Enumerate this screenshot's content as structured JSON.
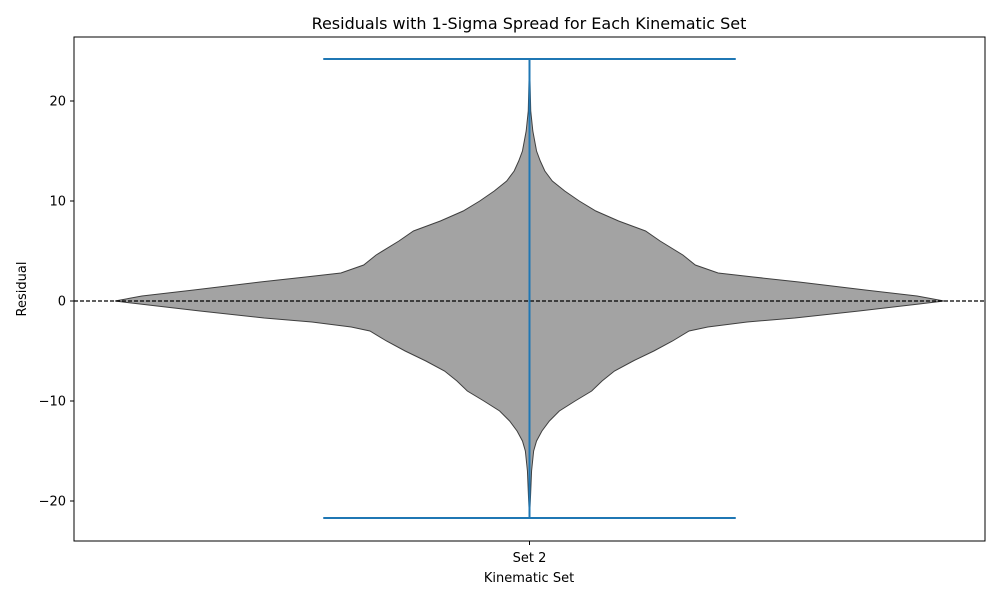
{
  "chart_data": {
    "type": "violin",
    "title": "Residuals with 1-Sigma Spread for Each Kinematic Set",
    "xlabel": "Kinematic Set",
    "ylabel": "Residual",
    "categories": [
      "Set 2"
    ],
    "ylim": [
      -24,
      26.4
    ],
    "yticks": [
      -20,
      -10,
      0,
      10,
      20
    ],
    "ytick_labels": [
      "−20",
      "−10",
      "0",
      "10",
      "20"
    ],
    "reference_line": {
      "y": 0,
      "style": "dashed",
      "color": "#000000"
    },
    "violins": [
      {
        "category": "Set 2",
        "min": -21.7,
        "max": 24.2,
        "fill_color": "#a3a3a3",
        "edge_color": "#3f3f3f",
        "whisker_color": "#1f77b4",
        "density_profile": [
          {
            "y": -21.7,
            "w": 0.0
          },
          {
            "y": -20.0,
            "w": 0.002
          },
          {
            "y": -17.0,
            "w": 0.005
          },
          {
            "y": -15.0,
            "w": 0.01
          },
          {
            "y": -14.0,
            "w": 0.017
          },
          {
            "y": -13.0,
            "w": 0.03
          },
          {
            "y": -12.0,
            "w": 0.048
          },
          {
            "y": -11.0,
            "w": 0.072
          },
          {
            "y": -10.0,
            "w": 0.11
          },
          {
            "y": -9.0,
            "w": 0.15
          },
          {
            "y": -8.0,
            "w": 0.175
          },
          {
            "y": -7.0,
            "w": 0.205
          },
          {
            "y": -6.0,
            "w": 0.25
          },
          {
            "y": -5.0,
            "w": 0.3
          },
          {
            "y": -4.0,
            "w": 0.345
          },
          {
            "y": -3.0,
            "w": 0.385
          },
          {
            "y": -2.6,
            "w": 0.43
          },
          {
            "y": -2.1,
            "w": 0.525
          },
          {
            "y": -1.7,
            "w": 0.64
          },
          {
            "y": -1.0,
            "w": 0.795
          },
          {
            "y": -0.3,
            "w": 0.94
          },
          {
            "y": 0.0,
            "w": 1.0
          },
          {
            "y": 0.5,
            "w": 0.935
          },
          {
            "y": 1.1,
            "w": 0.81
          },
          {
            "y": 1.9,
            "w": 0.65
          },
          {
            "y": 2.4,
            "w": 0.54
          },
          {
            "y": 2.8,
            "w": 0.455
          },
          {
            "y": 3.6,
            "w": 0.4
          },
          {
            "y": 4.6,
            "w": 0.37
          },
          {
            "y": 6.0,
            "w": 0.315
          },
          {
            "y": 7.0,
            "w": 0.28
          },
          {
            "y": 8.0,
            "w": 0.215
          },
          {
            "y": 9.0,
            "w": 0.16
          },
          {
            "y": 10.0,
            "w": 0.12
          },
          {
            "y": 11.0,
            "w": 0.085
          },
          {
            "y": 12.0,
            "w": 0.055
          },
          {
            "y": 13.0,
            "w": 0.037
          },
          {
            "y": 14.0,
            "w": 0.026
          },
          {
            "y": 15.0,
            "w": 0.017
          },
          {
            "y": 17.0,
            "w": 0.008
          },
          {
            "y": 19.0,
            "w": 0.003
          },
          {
            "y": 24.2,
            "w": 0.0
          }
        ]
      }
    ]
  }
}
